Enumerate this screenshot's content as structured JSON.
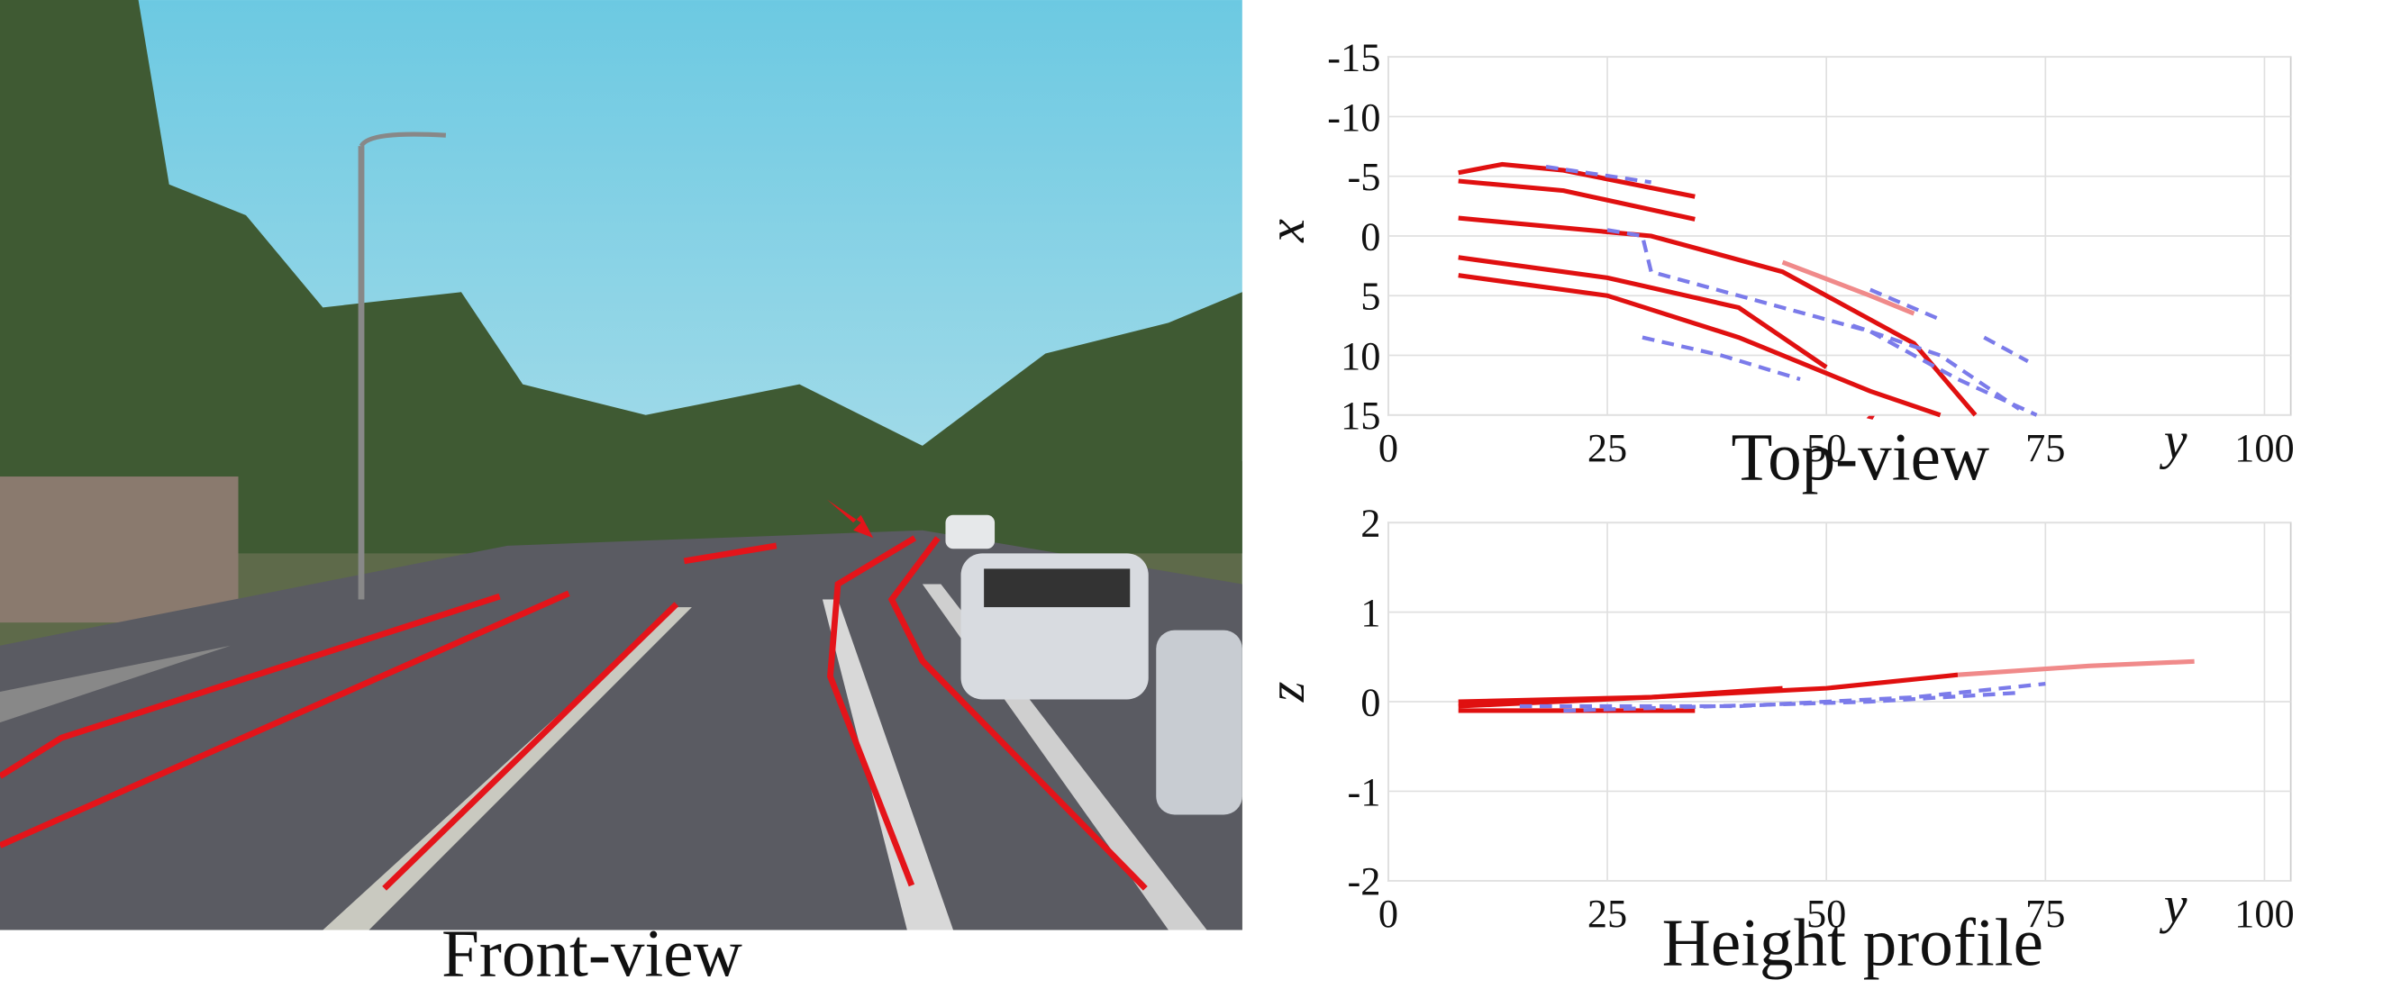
{
  "figure": {
    "front_view_caption": "Front-view"
  },
  "chart_data": [
    {
      "type": "line",
      "title": "Top-view",
      "x_label": "y",
      "y_label": "x",
      "xlim": [
        0,
        103
      ],
      "ylim": [
        -15,
        15
      ],
      "y_inverted": true,
      "xticks": [
        0,
        25,
        50,
        75,
        100
      ],
      "yticks": [
        -15,
        -10,
        -5,
        0,
        5,
        10,
        15
      ],
      "grid": true,
      "series": [
        {
          "color": "#e01010",
          "dashed": false,
          "x": [
            8,
            13,
            20,
            35
          ],
          "values": [
            -5.3,
            -6,
            -5.5,
            -3.3
          ]
        },
        {
          "color": "#e01010",
          "dashed": false,
          "x": [
            8,
            20,
            35
          ],
          "values": [
            -4.6,
            -3.8,
            -1.4
          ]
        },
        {
          "color": "#e01010",
          "dashed": false,
          "x": [
            8,
            30,
            45,
            60,
            67
          ],
          "values": [
            -1.5,
            0,
            3,
            9,
            15
          ]
        },
        {
          "color": "#e01010",
          "dashed": false,
          "x": [
            8,
            25,
            40,
            50
          ],
          "values": [
            1.8,
            3.5,
            6,
            11
          ]
        },
        {
          "color": "#e01010",
          "dashed": false,
          "x": [
            8,
            25,
            40,
            55,
            63
          ],
          "values": [
            3.3,
            5,
            8.5,
            13,
            15
          ]
        },
        {
          "color": "#f08a8a",
          "dashed": false,
          "x": [
            45,
            55,
            60
          ],
          "values": [
            2.2,
            5,
            6.5
          ]
        },
        {
          "color": "#7b7bea",
          "dashed": true,
          "x": [
            18,
            30
          ],
          "values": [
            -5.8,
            -4.5
          ]
        },
        {
          "color": "#7b7bea",
          "dashed": true,
          "x": [
            25,
            29,
            30,
            40,
            55,
            65,
            74
          ],
          "values": [
            -0.5,
            0,
            3,
            5,
            8,
            12,
            15
          ]
        },
        {
          "color": "#7b7bea",
          "dashed": true,
          "x": [
            29,
            38,
            47
          ],
          "values": [
            8.5,
            10,
            12
          ]
        },
        {
          "color": "#7b7bea",
          "dashed": true,
          "x": [
            55,
            63
          ],
          "values": [
            4.5,
            7
          ]
        },
        {
          "color": "#7b7bea",
          "dashed": true,
          "x": [
            53,
            63,
            72
          ],
          "values": [
            7.5,
            10,
            14.5
          ]
        },
        {
          "color": "#7b7bea",
          "dashed": true,
          "x": [
            68,
            73
          ],
          "values": [
            8.5,
            10.5
          ]
        }
      ]
    },
    {
      "type": "line",
      "title": "Height profile",
      "x_label": "y",
      "y_label": "z",
      "xlim": [
        0,
        103
      ],
      "ylim": [
        -2,
        2
      ],
      "y_inverted": false,
      "xticks": [
        0,
        25,
        50,
        75,
        100
      ],
      "yticks": [
        -2,
        -1,
        0,
        1,
        2
      ],
      "grid": true,
      "series": [
        {
          "color": "#e01010",
          "dashed": false,
          "x": [
            8,
            30,
            50,
            65
          ],
          "values": [
            0,
            0.05,
            0.15,
            0.3
          ]
        },
        {
          "color": "#f08a8a",
          "dashed": false,
          "x": [
            65,
            80,
            92
          ],
          "values": [
            0.3,
            0.4,
            0.45
          ]
        },
        {
          "color": "#e01010",
          "dashed": false,
          "x": [
            8,
            35
          ],
          "values": [
            -0.1,
            -0.1
          ]
        },
        {
          "color": "#e01010",
          "dashed": false,
          "x": [
            8,
            30,
            45
          ],
          "values": [
            -0.05,
            0.05,
            0.15
          ]
        },
        {
          "color": "#7b7bea",
          "dashed": true,
          "x": [
            15,
            40,
            60,
            75
          ],
          "values": [
            -0.05,
            -0.05,
            0.05,
            0.2
          ]
        },
        {
          "color": "#7b7bea",
          "dashed": true,
          "x": [
            20,
            55,
            72
          ],
          "values": [
            -0.1,
            0,
            0.1
          ]
        }
      ]
    }
  ]
}
